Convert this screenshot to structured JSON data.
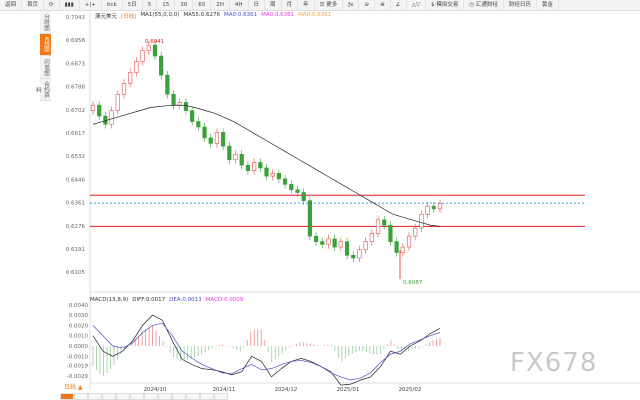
{
  "toolbar": {
    "items": [
      "返回",
      "首页",
      "⟳",
      "▮▮▮",
      "+|+",
      "tick",
      "5日",
      "5",
      "15",
      "30",
      "60",
      "2H",
      "4H",
      "日",
      "周",
      "月",
      "年",
      "☰ 更多",
      "ƒx",
      "⊖",
      "⊕",
      "∠",
      "△▽",
      "$ 模拟交易",
      "◷ 汇通财经",
      "财经日历",
      "黄金"
    ]
  },
  "sidetabs": [
    "分时图",
    "K线图",
    "闪电图",
    "合约资料"
  ],
  "legend": {
    "symbol": "澳元美元",
    "period": "[日线]",
    "ma_params": "MA1(55,0,0,0)",
    "ma55": "MA55:0.6276",
    "ma_a": "MA0:0.6361",
    "ma_b": "MA0:0.6361",
    "ma_c": "MA0:0.6361"
  },
  "macd_legend": {
    "params": "MACD(13,8,9)",
    "diff": "DIFF:0.0017",
    "dea": "DEA:0.0013",
    "macd": "MACD:0.0009"
  },
  "period_label": "日线 ▲",
  "watermark": "FX678",
  "colors": {
    "up": "#e05050",
    "down": "#3aa03a",
    "ma": "#222222",
    "dea": "#4b4bc8",
    "level": "#e02020",
    "current": "#3aa0e0",
    "accent": "#f07a1a"
  },
  "chart_data": {
    "type": "candlestick",
    "y_ticks": [
      "0.7043",
      "0.6958",
      "0.6873",
      "0.6788",
      "0.6702",
      "0.6617",
      "0.6532",
      "0.6446",
      "0.6361",
      "0.6276",
      "0.6191",
      "0.6105"
    ],
    "x_ticks": [
      "2024/10",
      "2024/11",
      "2024/12",
      "2025/01",
      "2025/02"
    ],
    "annotations": {
      "high": "0.6941",
      "low": "0.6087"
    },
    "levels": [
      0.639,
      0.6276
    ],
    "current": 0.6361,
    "closes": [
      0.672,
      0.668,
      0.665,
      0.67,
      0.676,
      0.68,
      0.684,
      0.688,
      0.692,
      0.694,
      0.69,
      0.683,
      0.676,
      0.672,
      0.673,
      0.67,
      0.666,
      0.664,
      0.66,
      0.658,
      0.662,
      0.657,
      0.652,
      0.654,
      0.65,
      0.648,
      0.651,
      0.649,
      0.646,
      0.647,
      0.645,
      0.643,
      0.641,
      0.64,
      0.637,
      0.624,
      0.622,
      0.621,
      0.623,
      0.62,
      0.622,
      0.617,
      0.616,
      0.619,
      0.622,
      0.625,
      0.63,
      0.628,
      0.622,
      0.618,
      0.62,
      0.624,
      0.627,
      0.632,
      0.635,
      0.634,
      0.636
    ],
    "ma55": [
      0.665,
      0.666,
      0.667,
      0.668,
      0.669,
      0.67,
      0.671,
      0.6715,
      0.6718,
      0.672,
      0.6718,
      0.671,
      0.67,
      0.669,
      0.6675,
      0.666,
      0.664,
      0.662,
      0.66,
      0.658,
      0.656,
      0.654,
      0.652,
      0.65,
      0.648,
      0.646,
      0.644,
      0.642,
      0.64,
      0.638,
      0.636,
      0.634,
      0.632,
      0.631,
      0.63,
      0.629,
      0.628,
      0.6276
    ],
    "macd": {
      "y_ticks": [
        "0.0040",
        "0.0030",
        "0.0020",
        "0.0010",
        "0.0000",
        "-0.0010",
        "-0.0019",
        "-0.0029"
      ],
      "diff": [
        0.001,
        -0.0005,
        -0.001,
        -0.0005,
        0.0005,
        0.002,
        0.003,
        0.0025,
        0.0005,
        -0.0013,
        -0.0018,
        -0.0022,
        -0.0023,
        -0.0025,
        -0.0028,
        -0.0025,
        -0.001,
        -0.0015,
        -0.003,
        -0.0022,
        -0.0015,
        -0.0012,
        -0.0015,
        -0.002,
        -0.0025,
        -0.0038,
        -0.0037,
        -0.0033,
        -0.003,
        -0.002,
        -0.0005,
        -0.0008,
        0.0,
        0.0005,
        0.0012,
        0.0017
      ],
      "dea": [
        0.002,
        0.001,
        0.0,
        -0.0002,
        0.0003,
        0.0013,
        0.002,
        0.0022,
        0.001,
        -0.0005,
        -0.0012,
        -0.0018,
        -0.0022,
        -0.0026,
        -0.0027,
        -0.0022,
        -0.0018,
        -0.0023,
        -0.0022,
        -0.0018,
        -0.0015,
        -0.0014,
        -0.0016,
        -0.002,
        -0.0026,
        -0.003,
        -0.0033,
        -0.0031,
        -0.0026,
        -0.0016,
        -0.0008,
        -0.0005,
        0.0002,
        0.0006,
        0.001,
        0.0013
      ]
    }
  }
}
